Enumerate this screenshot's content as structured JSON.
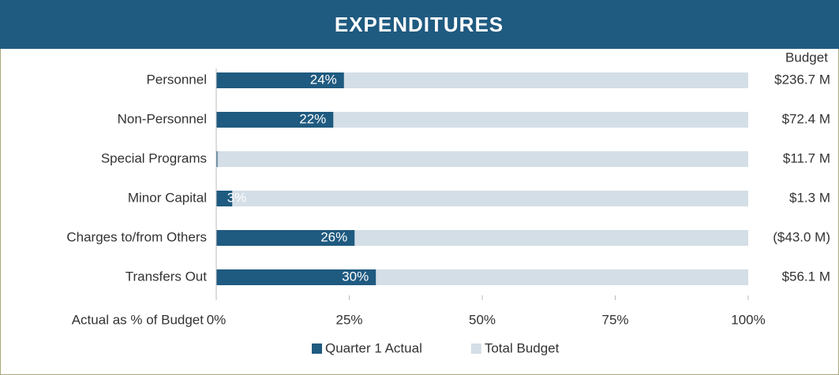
{
  "chart_data": {
    "type": "bar",
    "orientation": "horizontal",
    "title": "EXPENDITURES",
    "categories": [
      "Personnel",
      "Non-Personnel",
      "Special Programs",
      "Minor Capital",
      "Charges to/from Others",
      "Transfers Out"
    ],
    "series": [
      {
        "name": "Quarter 1 Actual",
        "color": "#1f5a80",
        "values": [
          24,
          22,
          0,
          3,
          26,
          30
        ],
        "value_labels": [
          "24%",
          "22%",
          null,
          "3%",
          "26%",
          "30%"
        ]
      },
      {
        "name": "Total Budget",
        "color": "#d4dee6",
        "values": [
          100,
          100,
          100,
          100,
          100,
          100
        ]
      }
    ],
    "budget_header": "Budget",
    "budget_labels": [
      "$236.7 M",
      "$72.4 M",
      "$11.7 M",
      "$1.3 M",
      "($43.0 M)",
      "$56.1 M"
    ],
    "xlabel": "Actual as % of Budget",
    "xlim": [
      0,
      100
    ],
    "xticks": [
      {
        "value": 0,
        "label": "0%"
      },
      {
        "value": 25,
        "label": "25%"
      },
      {
        "value": 50,
        "label": "50%"
      },
      {
        "value": 75,
        "label": "75%"
      },
      {
        "value": 100,
        "label": "100%"
      }
    ],
    "legend": "bottom"
  }
}
